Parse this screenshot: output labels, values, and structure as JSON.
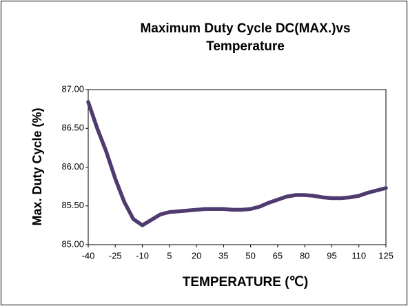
{
  "chart_data": {
    "type": "line",
    "title": [
      "Maximum Duty Cycle DC(MAX.)vs",
      "Temperature"
    ],
    "xlabel": "TEMPERATURE (℃)",
    "ylabel": "Max. Duty Cycle (%)",
    "x": [
      -40,
      -35,
      -30,
      -25,
      -20,
      -15,
      -10,
      -5,
      0,
      5,
      10,
      15,
      20,
      25,
      30,
      35,
      40,
      45,
      50,
      55,
      60,
      65,
      70,
      75,
      80,
      85,
      90,
      95,
      100,
      105,
      110,
      115,
      120,
      125
    ],
    "series": [
      {
        "color": "#4f3b6f",
        "values": [
          86.84,
          86.5,
          86.2,
          85.85,
          85.55,
          85.33,
          85.25,
          85.32,
          85.39,
          85.42,
          85.43,
          85.44,
          85.45,
          85.46,
          85.46,
          85.46,
          85.45,
          85.45,
          85.46,
          85.49,
          85.54,
          85.58,
          85.62,
          85.64,
          85.64,
          85.63,
          85.61,
          85.6,
          85.6,
          85.61,
          85.63,
          85.67,
          85.7,
          85.73
        ]
      }
    ],
    "xlim": [
      -40,
      125
    ],
    "xticks": [
      -40,
      -25,
      -10,
      5,
      20,
      35,
      50,
      65,
      80,
      95,
      110,
      125
    ],
    "ylim": [
      85,
      87
    ],
    "yticks": [
      {
        "value": 85,
        "label": "85.00"
      },
      {
        "value": 85.5,
        "label": "85.50"
      },
      {
        "value": 86,
        "label": "86.00"
      },
      {
        "value": 86.5,
        "label": "86.50"
      },
      {
        "value": 87,
        "label": "87.00"
      }
    ],
    "grid": false
  }
}
